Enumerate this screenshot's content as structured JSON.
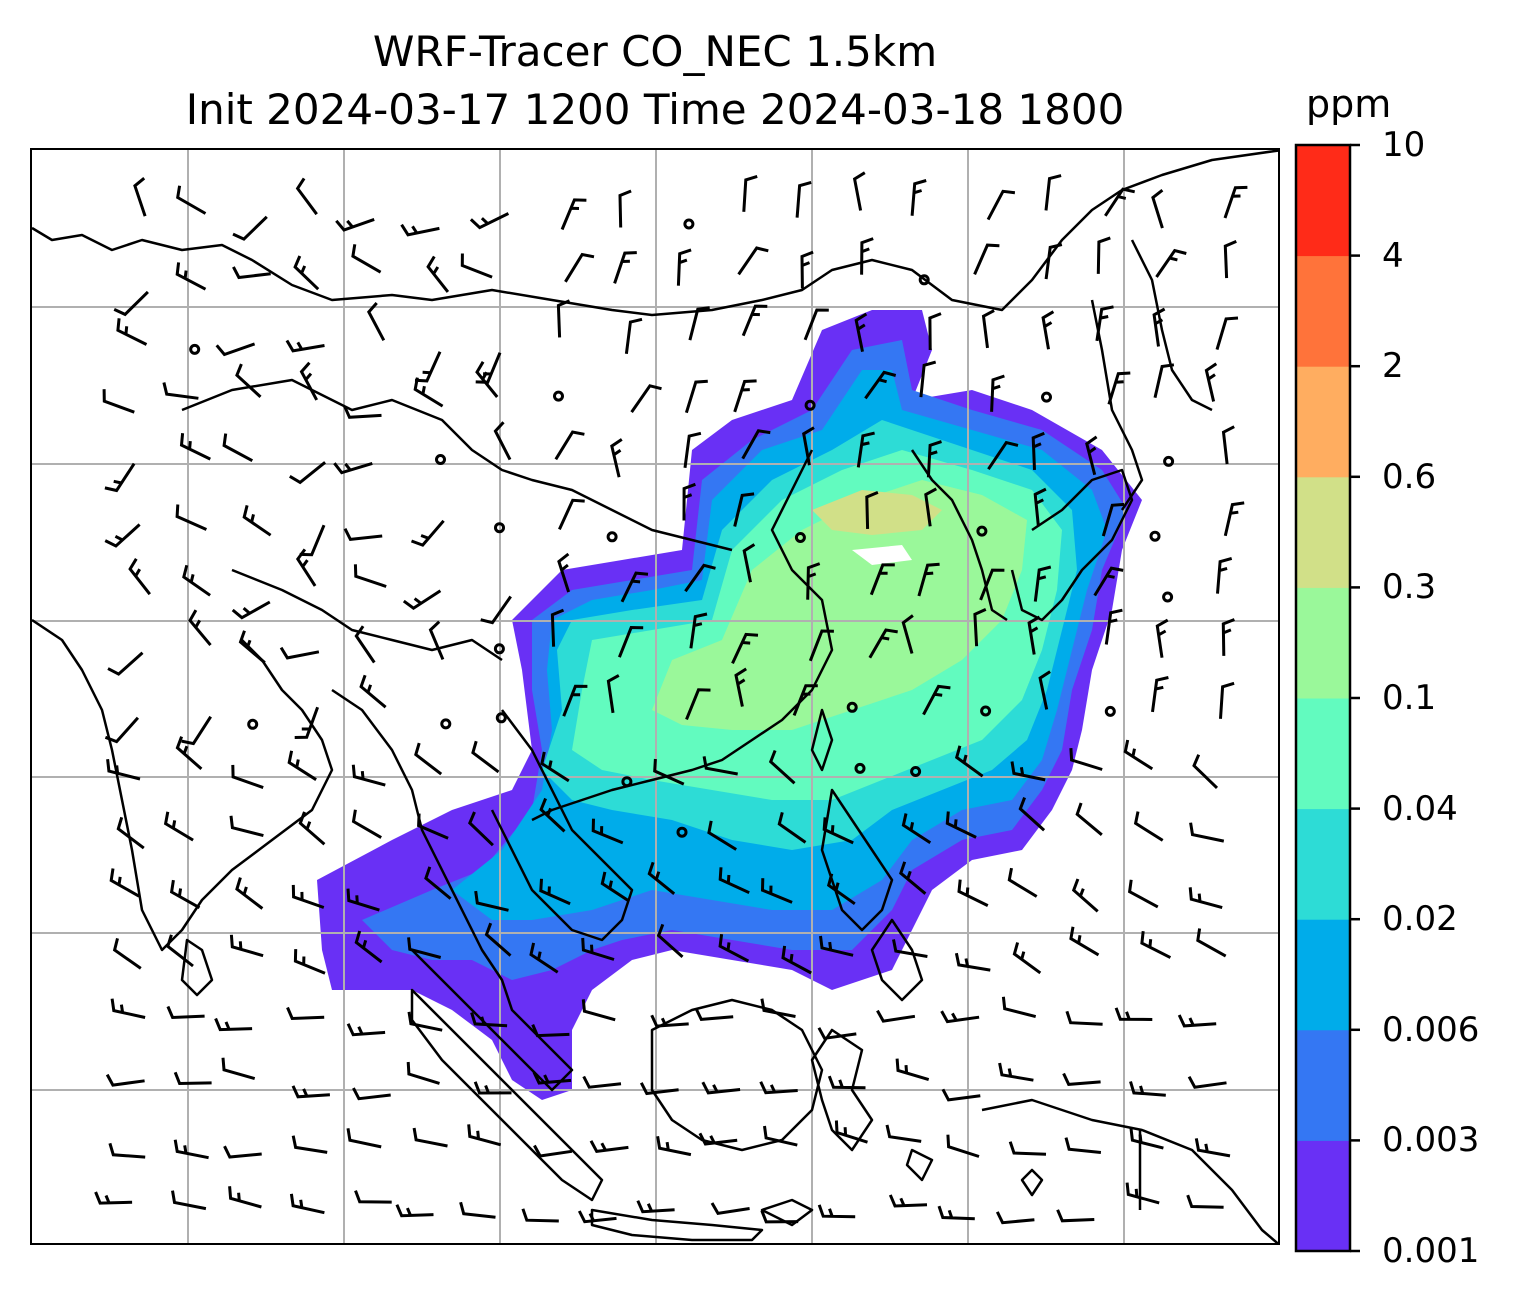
{
  "title": {
    "line1": "WRF-Tracer CO_NEC 1.5km",
    "line2": "Init 2024-03-17 1200 Time 2024-03-18 1800"
  },
  "colorbar": {
    "unit": "ppm",
    "levels": [
      "0.001",
      "0.003",
      "0.006",
      "0.02",
      "0.04",
      "0.1",
      "0.3",
      "0.6",
      "2",
      "4",
      "10"
    ],
    "colors": [
      "#6930f5",
      "#3477f3",
      "#00acea",
      "#2ddcd6",
      "#62fbbf",
      "#9af89a",
      "#d1e088",
      "#ffad60",
      "#ff733a",
      "#ff2b18"
    ]
  },
  "map": {
    "gridlines": true,
    "gridline_color": "#b0b0b0",
    "coastline_color": "#000000",
    "field_name": "CO_NEC",
    "level": "1.5km"
  }
}
